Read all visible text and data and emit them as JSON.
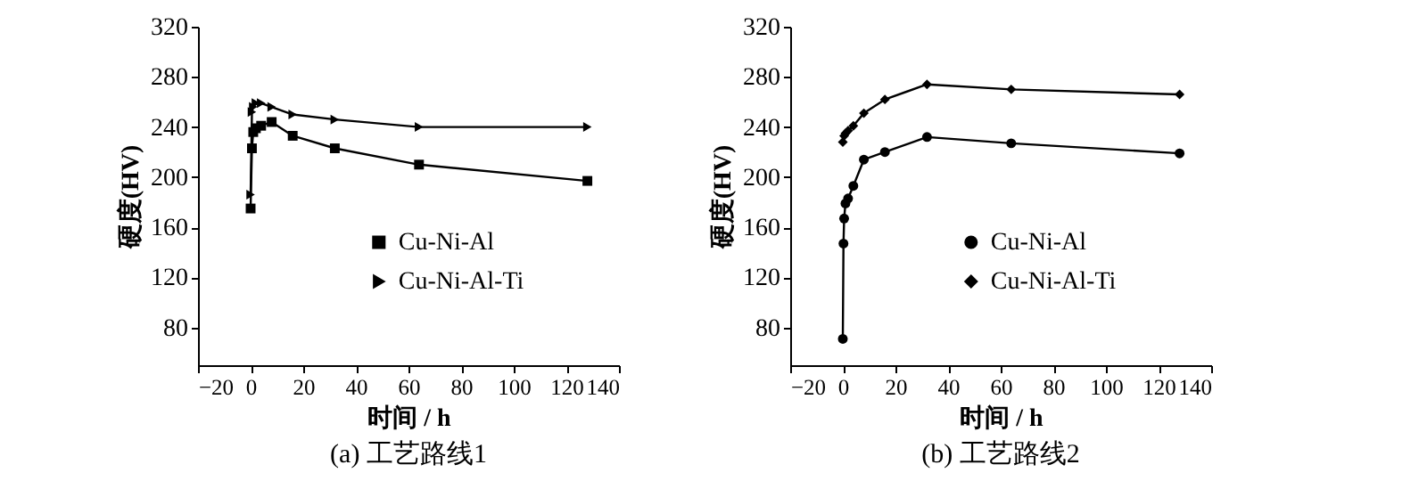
{
  "chart_data": [
    {
      "type": "line",
      "title": "(a) 工艺路线1",
      "xlabel": "时间 / h",
      "ylabel": "硬度(HV)",
      "xlim": [
        -20,
        140
      ],
      "xticks": [
        -20,
        0,
        20,
        40,
        60,
        80,
        100,
        120,
        140
      ],
      "ylim": [
        50,
        320
      ],
      "yticks": [
        80,
        120,
        160,
        200,
        240,
        280,
        320
      ],
      "grid": false,
      "legend": "right",
      "series": [
        {
          "name": "Cu-Ni-Al",
          "color": "#000000",
          "marker": "square",
          "x": [
            0,
            0.5,
            1,
            2,
            4,
            8,
            16,
            32,
            64,
            128
          ],
          "values": [
            175,
            223,
            236,
            239,
            241,
            244,
            233,
            223,
            210,
            197
          ]
        },
        {
          "name": "Cu-Ni-Al-Ti",
          "color": "#000000",
          "marker": "triangle",
          "x": [
            0,
            0.5,
            1,
            2,
            4,
            8,
            16,
            32,
            64,
            128
          ],
          "values": [
            186,
            252,
            256,
            259,
            259,
            256,
            250,
            246,
            240,
            240
          ]
        }
      ]
    },
    {
      "type": "line",
      "title": "(b) 工艺路线2",
      "xlabel": "时间 / h",
      "ylabel": "硬度(HV)",
      "xlim": [
        -20,
        140
      ],
      "xticks": [
        -20,
        0,
        20,
        40,
        60,
        80,
        100,
        120,
        140
      ],
      "ylim": [
        50,
        320
      ],
      "yticks": [
        80,
        120,
        160,
        200,
        240,
        280,
        320
      ],
      "grid": false,
      "legend": "right",
      "series": [
        {
          "name": "Cu-Ni-Al",
          "color": "#000000",
          "marker": "circle",
          "x": [
            0,
            0.25,
            0.5,
            1,
            2,
            4,
            8,
            16,
            32,
            64,
            128
          ],
          "values": [
            71,
            147,
            167,
            179,
            183,
            193,
            214,
            220,
            232,
            227,
            219
          ]
        },
        {
          "name": "Cu-Ni-Al-Ti",
          "color": "#000000",
          "marker": "diamond",
          "x": [
            0,
            0.5,
            1,
            2,
            4,
            8,
            16,
            32,
            64,
            128
          ],
          "values": [
            228,
            233,
            235,
            237,
            241,
            251,
            262,
            274,
            270,
            266
          ]
        }
      ]
    }
  ]
}
